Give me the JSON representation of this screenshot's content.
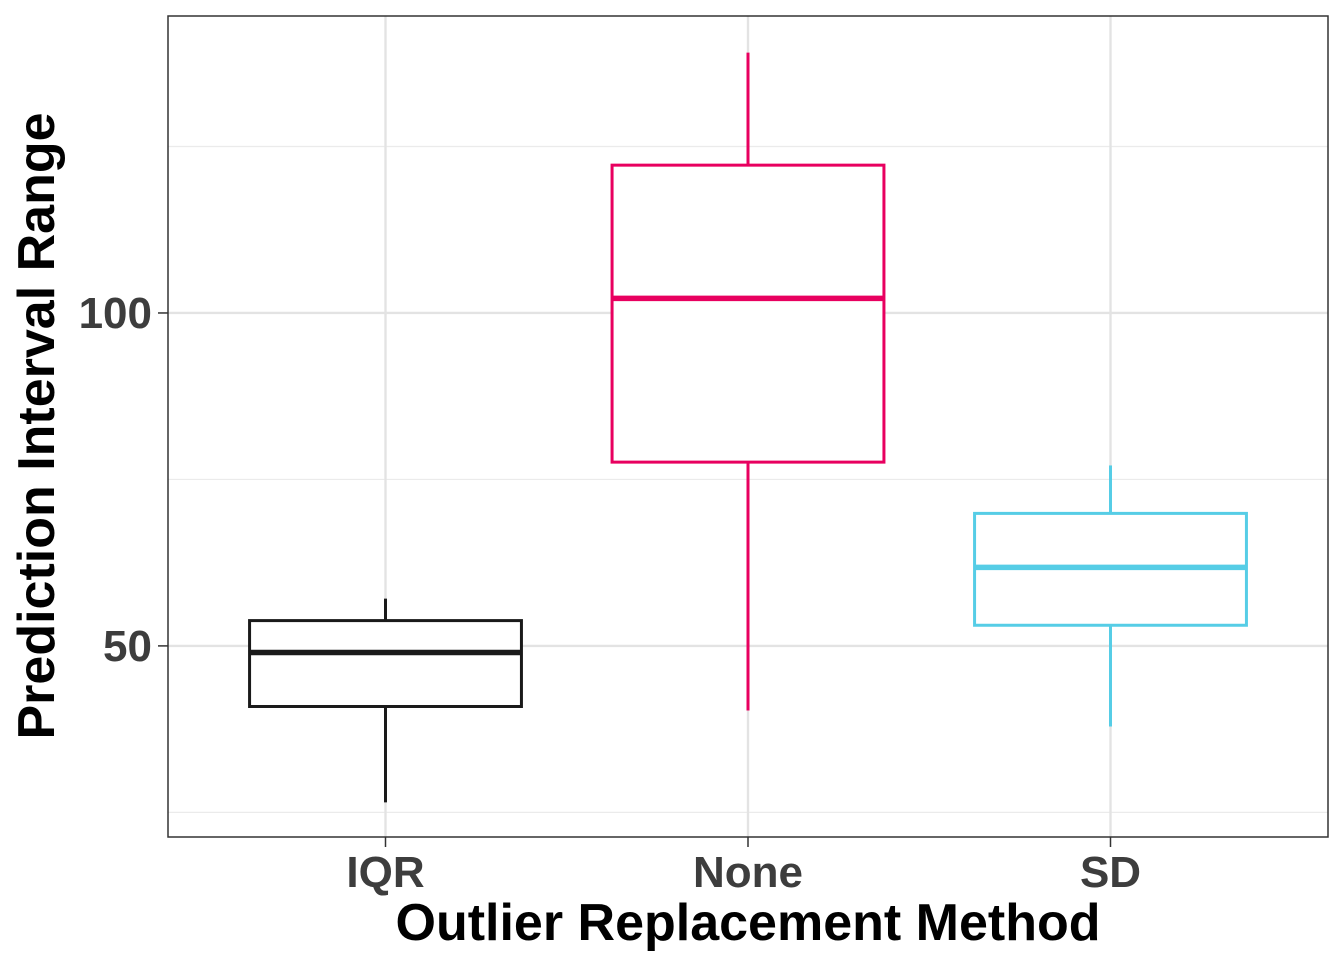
{
  "chart_data": {
    "type": "boxplot",
    "xlabel": "Outlier Replacement Method",
    "ylabel": "Prediction Interval Range",
    "categories": [
      "IQR",
      "None",
      "SD"
    ],
    "boxes": [
      {
        "category": "IQR",
        "whisker_low": 26.5,
        "q1": 40.9,
        "median": 49.0,
        "q3": 53.8,
        "whisker_high": 57.1,
        "color": "#1a1a1a"
      },
      {
        "category": "None",
        "whisker_low": 40.3,
        "q1": 77.6,
        "median": 102.2,
        "q3": 122.2,
        "whisker_high": 139.1,
        "color": "#e8005f"
      },
      {
        "category": "SD",
        "whisker_low": 37.9,
        "q1": 53.1,
        "median": 61.8,
        "q3": 69.9,
        "whisker_high": 77.1,
        "color": "#56cde6"
      }
    ],
    "y_ticks": [
      50,
      100
    ],
    "y_tick_labels": [
      "50",
      "100"
    ],
    "ylim": [
      21.3,
      144.6
    ],
    "grid": true,
    "legend": "none"
  }
}
